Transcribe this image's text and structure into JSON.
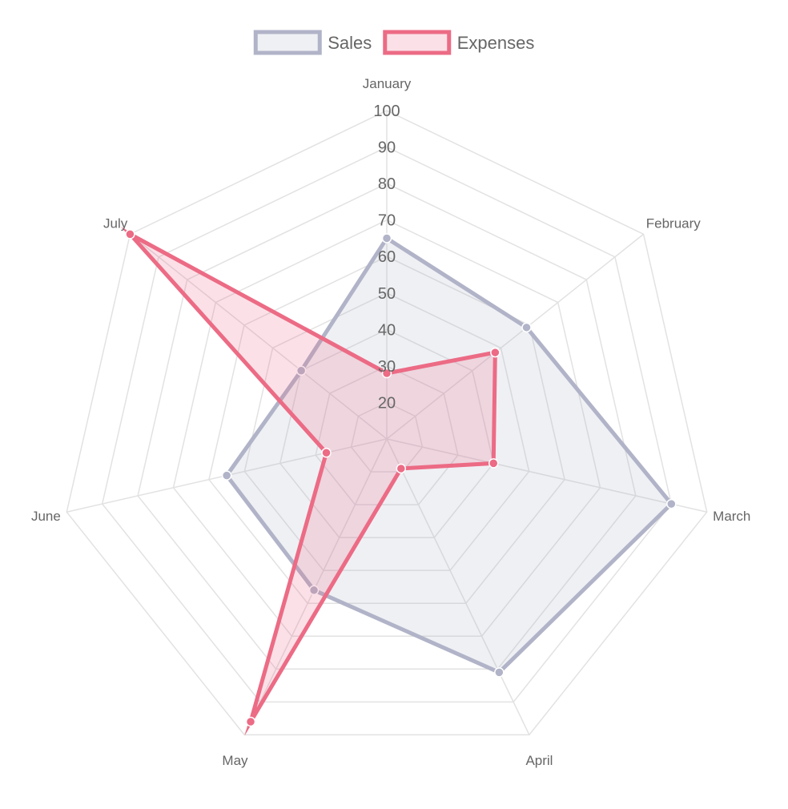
{
  "chart_data": {
    "type": "radar",
    "categories": [
      "January",
      "February",
      "March",
      "April",
      "May",
      "June",
      "July"
    ],
    "series": [
      {
        "name": "Sales",
        "values": [
          65,
          59,
          90,
          81,
          56,
          55,
          40
        ],
        "color": "#b1b3c8",
        "fill": "rgba(177,179,200,0.2)"
      },
      {
        "name": "Expenses",
        "values": [
          28,
          48,
          40,
          19,
          96,
          27,
          100
        ],
        "color": "#ec6b85",
        "fill": "rgba(236,107,133,0.2)"
      }
    ],
    "r_min": 10,
    "r_max": 100,
    "r_step": 10,
    "tick_labels": [
      "20",
      "30",
      "40",
      "50",
      "60",
      "70",
      "80",
      "90",
      "100"
    ],
    "grid": true,
    "legend": "top"
  }
}
